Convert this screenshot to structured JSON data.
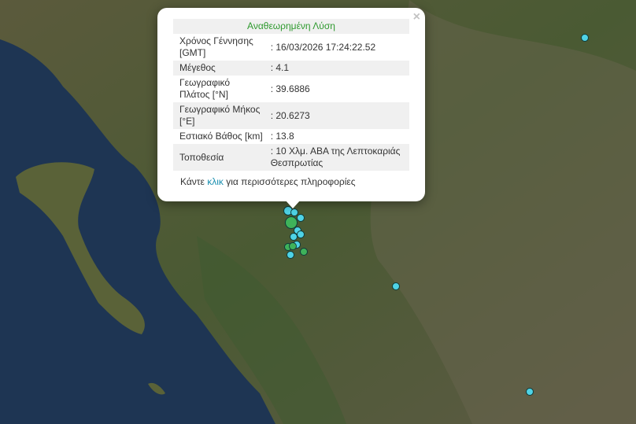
{
  "popup": {
    "title": "Αναθεωρημένη Λύση",
    "close_label": "×",
    "rows": [
      {
        "label": "Χρόνος Γέννησης [GMT]",
        "value": ": 16/03/2026 17:24:22.52"
      },
      {
        "label": "Μέγεθος",
        "value": ": 4.1"
      },
      {
        "label": "Γεωγραφικό Πλάτος [°N]",
        "value": ": 39.6886"
      },
      {
        "label": "Γεωγραφικό Μήκος [°E]",
        "value": ": 20.6273"
      },
      {
        "label": "Εστιακό Βάθος [km]",
        "value": ": 13.8"
      },
      {
        "label": "Τοποθεσία",
        "value": ": 10 Χλμ. ΑΒΑ της Λεπτοκαριάς Θεσπρωτίας"
      }
    ],
    "more_prefix": "Κάντε ",
    "more_link": "κλικ",
    "more_suffix": " για περισσότερες πληροφορίες"
  },
  "colors": {
    "marker_cyan": "#4fd3e6",
    "marker_green": "#3fb25a",
    "title_green": "#2e9a2e",
    "link": "#1a8fb0"
  }
}
